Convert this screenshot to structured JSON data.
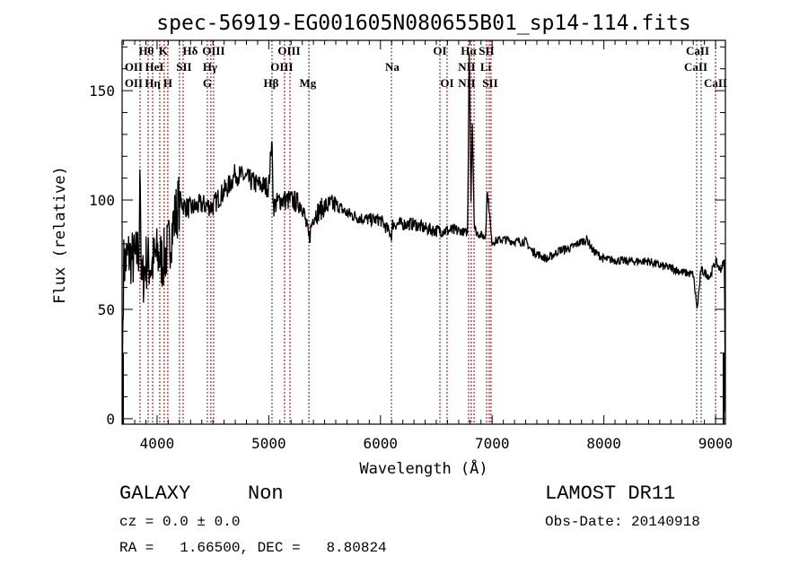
{
  "chart_data": {
    "type": "line",
    "title": "spec-56919-EG001605N080655B01_sp14-114.fits",
    "xlabel": "Wavelength (Å)",
    "ylabel": "Flux (relative)",
    "xlim": [
      3687,
      9088
    ],
    "ylim": [
      -2.5,
      173
    ],
    "xticks": [
      4000,
      5000,
      6000,
      7000,
      8000,
      9000
    ],
    "yticks": [
      0,
      50,
      100,
      150
    ],
    "grid": false,
    "series": [
      {
        "name": "spectrum",
        "color": "#000000",
        "control_points": [
          [
            3690,
            27
          ],
          [
            3700,
            70
          ],
          [
            3750,
            75
          ],
          [
            3800,
            72
          ],
          [
            3840,
            78
          ],
          [
            3847,
            120
          ],
          [
            3860,
            60
          ],
          [
            3900,
            72
          ],
          [
            3950,
            70
          ],
          [
            4000,
            75
          ],
          [
            4050,
            72
          ],
          [
            4100,
            78
          ],
          [
            4150,
            90
          ],
          [
            4200,
            100
          ],
          [
            4250,
            97
          ],
          [
            4300,
            96
          ],
          [
            4400,
            98
          ],
          [
            4500,
            97
          ],
          [
            4550,
            101
          ],
          [
            4650,
            107
          ],
          [
            4700,
            112
          ],
          [
            4800,
            110
          ],
          [
            4900,
            107
          ],
          [
            5000,
            106
          ],
          [
            5029,
            129
          ],
          [
            5040,
            97
          ],
          [
            5100,
            100
          ],
          [
            5200,
            100
          ],
          [
            5300,
            98
          ],
          [
            5359,
            82
          ],
          [
            5400,
            93
          ],
          [
            5500,
            97
          ],
          [
            5600,
            98
          ],
          [
            5700,
            94
          ],
          [
            5800,
            92
          ],
          [
            5900,
            91
          ],
          [
            6000,
            91
          ],
          [
            6098,
            84
          ],
          [
            6110,
            89
          ],
          [
            6200,
            89
          ],
          [
            6300,
            89
          ],
          [
            6400,
            87
          ],
          [
            6500,
            86
          ],
          [
            6600,
            86
          ],
          [
            6700,
            86
          ],
          [
            6780,
            85
          ],
          [
            6795,
            173
          ],
          [
            6810,
            100
          ],
          [
            6822,
            135
          ],
          [
            6840,
            88
          ],
          [
            6860,
            85
          ],
          [
            6940,
            83
          ],
          [
            6955,
            104
          ],
          [
            6975,
            95
          ],
          [
            6995,
            81
          ],
          [
            7100,
            82
          ],
          [
            7200,
            81
          ],
          [
            7300,
            81
          ],
          [
            7350,
            77
          ],
          [
            7450,
            74
          ],
          [
            7500,
            73
          ],
          [
            7600,
            77
          ],
          [
            7700,
            78
          ],
          [
            7800,
            81
          ],
          [
            7850,
            82
          ],
          [
            7900,
            77
          ],
          [
            8000,
            73
          ],
          [
            8200,
            72
          ],
          [
            8400,
            72
          ],
          [
            8500,
            70
          ],
          [
            8600,
            69
          ],
          [
            8700,
            67
          ],
          [
            8800,
            66
          ],
          [
            8835,
            50
          ],
          [
            8870,
            68
          ],
          [
            8950,
            65
          ],
          [
            9000,
            72
          ],
          [
            9040,
            68
          ],
          [
            9080,
            72
          ],
          [
            9086,
            3
          ]
        ],
        "noise": [
          [
            4200,
            14
          ],
          [
            5600,
            5
          ],
          [
            6700,
            3
          ],
          [
            9100,
            2
          ]
        ]
      }
    ],
    "lines": [
      {
        "wl": 3847,
        "color": "#b22222"
      },
      {
        "wl": 3920,
        "color": "#b22222"
      },
      {
        "wl": 3960,
        "color": "#b22222"
      },
      {
        "wl": 4024,
        "color": "#b22222"
      },
      {
        "wl": 4064,
        "color": "#b22222"
      },
      {
        "wl": 4096,
        "color": "#b22222"
      },
      {
        "wl": 4201,
        "color": "#b22222"
      },
      {
        "wl": 4233,
        "color": "#b22222"
      },
      {
        "wl": 4450,
        "color": "#555555"
      },
      {
        "wl": 4482,
        "color": "#b22222"
      },
      {
        "wl": 4506,
        "color": "#b22222"
      },
      {
        "wl": 5029,
        "color": "#555555"
      },
      {
        "wl": 5141,
        "color": "#b22222"
      },
      {
        "wl": 5190,
        "color": "#b22222"
      },
      {
        "wl": 5359,
        "color": "#b22222"
      },
      {
        "wl": 6098,
        "color": "#555555"
      },
      {
        "wl": 6532,
        "color": "#b22222"
      },
      {
        "wl": 6596,
        "color": "#b22222"
      },
      {
        "wl": 6789,
        "color": "#b22222"
      },
      {
        "wl": 6813,
        "color": "#b22222"
      },
      {
        "wl": 6838,
        "color": "#b22222"
      },
      {
        "wl": 6950,
        "color": "#b22222"
      },
      {
        "wl": 6974,
        "color": "#b22222"
      },
      {
        "wl": 6990,
        "color": "#b22222"
      },
      {
        "wl": 8831,
        "color": "#555555"
      },
      {
        "wl": 8871,
        "color": "#555555"
      },
      {
        "wl": 9000,
        "color": "#b22222"
      }
    ],
    "line_labels": [
      {
        "text": "Hθ",
        "wl": 3904,
        "row": 1
      },
      {
        "text": "K",
        "wl": 4056,
        "row": 1
      },
      {
        "text": "Hδ",
        "wl": 4297,
        "row": 1
      },
      {
        "text": "OIII",
        "wl": 4506,
        "row": 1
      },
      {
        "text": "OIII",
        "wl": 5182,
        "row": 1
      },
      {
        "text": "OI",
        "wl": 6532,
        "row": 1
      },
      {
        "text": "Hα",
        "wl": 6789,
        "row": 1
      },
      {
        "text": "SII",
        "wl": 6950,
        "row": 1
      },
      {
        "text": "CaII",
        "wl": 8839,
        "row": 1
      },
      {
        "text": "OII",
        "wl": 3791,
        "row": 2
      },
      {
        "text": "HeI",
        "wl": 3976,
        "row": 2
      },
      {
        "text": "SII",
        "wl": 4241,
        "row": 2
      },
      {
        "text": "Hγ",
        "wl": 4474,
        "row": 2
      },
      {
        "text": "OIII",
        "wl": 5117,
        "row": 2
      },
      {
        "text": "Na",
        "wl": 6106,
        "row": 2
      },
      {
        "text": "NII",
        "wl": 6773,
        "row": 2
      },
      {
        "text": "Li",
        "wl": 6942,
        "row": 2
      },
      {
        "text": "CaII",
        "wl": 8823,
        "row": 2
      },
      {
        "text": "OII",
        "wl": 3791,
        "row": 3
      },
      {
        "text": "Hη",
        "wl": 3960,
        "row": 3
      },
      {
        "text": "H",
        "wl": 4096,
        "row": 3
      },
      {
        "text": "G",
        "wl": 4450,
        "row": 3
      },
      {
        "text": "Hβ",
        "wl": 5021,
        "row": 3
      },
      {
        "text": "Mg",
        "wl": 5350,
        "row": 3
      },
      {
        "text": "OI",
        "wl": 6596,
        "row": 3
      },
      {
        "text": "NII",
        "wl": 6773,
        "row": 3
      },
      {
        "text": "SII",
        "wl": 6982,
        "row": 3
      },
      {
        "text": "CaII",
        "wl": 9000,
        "row": 3
      }
    ]
  },
  "info": {
    "class": "GALAXY",
    "subclass": "Non",
    "cz": "cz = 0.0 ± 0.0",
    "radec": "RA =   1.66500, DEC =   8.80824",
    "survey": "LAMOST DR11",
    "obs_date": "Obs-Date: 20140918"
  }
}
